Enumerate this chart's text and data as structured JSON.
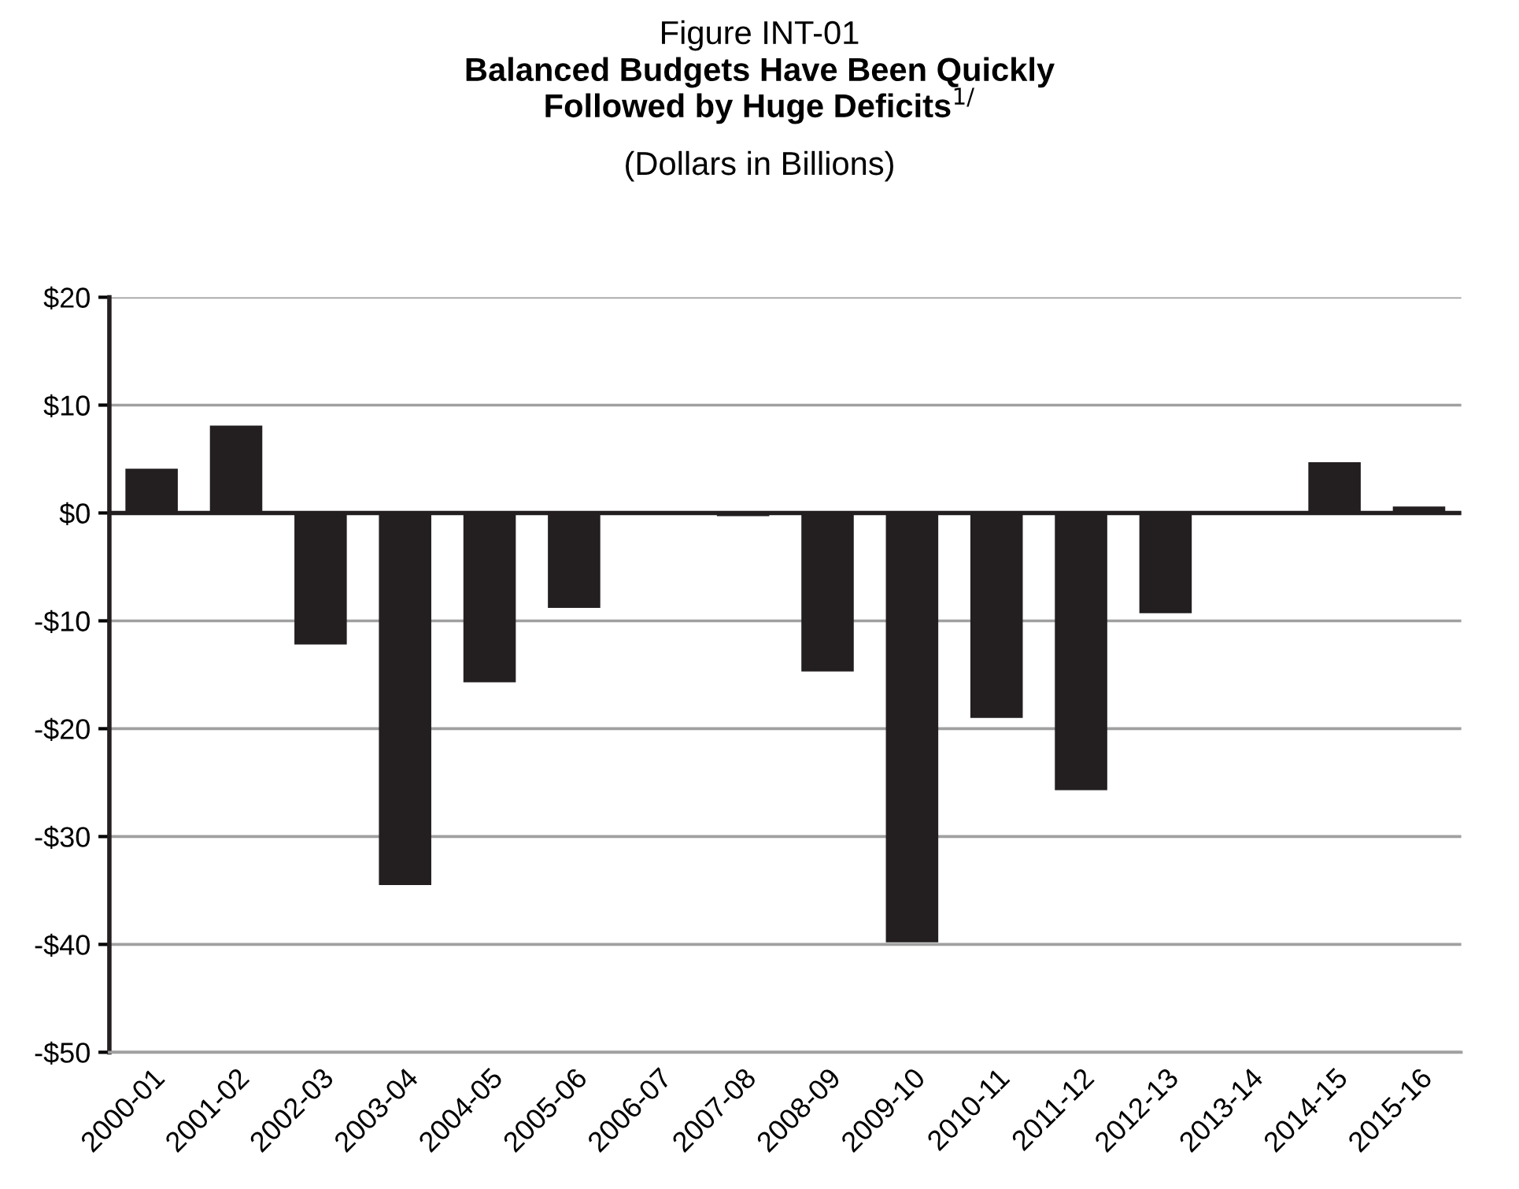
{
  "chart_data": {
    "type": "bar",
    "title": "Figure INT-01",
    "subtitle": "Balanced Budgets Have Been Quickly\nFollowed by Huge Deficits$^{1/}$",
    "annotations": [
      "(Dollars in Billions)"
    ],
    "categories": [
      "2000-01",
      "2001-02",
      "2002-03",
      "2003-04",
      "2004-05",
      "2005-06",
      "2006-07",
      "2007-08",
      "2008-09",
      "2009-10",
      "2010-11",
      "2011-12",
      "2012-13",
      "2013-14",
      "2014-15",
      "2015-16"
    ],
    "values": [
      4.1,
      8.1,
      -12.2,
      -34.5,
      -15.7,
      -8.8,
      0,
      -0.3,
      -14.7,
      -39.8,
      -19.0,
      -25.7,
      -9.3,
      0,
      4.7,
      0.6
    ],
    "color": "#231f20",
    "ylim": [
      -50,
      20
    ],
    "yticks": [
      {
        "value": -50,
        "label": "-$50"
      },
      {
        "value": -40,
        "label": "-$40"
      },
      {
        "value": -30,
        "label": "-$30"
      },
      {
        "value": -20,
        "label": "-$20"
      },
      {
        "value": -10,
        "label": "-$10"
      },
      {
        "value": 0,
        "label": "$0"
      },
      {
        "value": 10,
        "label": "$10"
      },
      {
        "value": 20,
        "label": "$20"
      }
    ],
    "grid": "y",
    "ref_lines": [
      {
        "axis": "y",
        "value": 0,
        "color": "#231f20"
      }
    ]
  }
}
